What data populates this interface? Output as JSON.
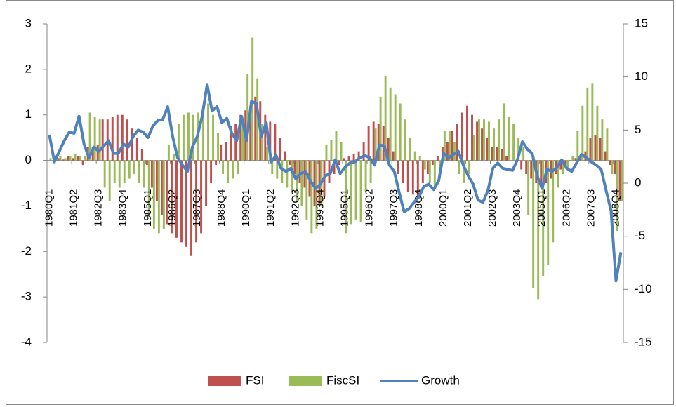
{
  "chart_data": {
    "type": "bar",
    "categories": [
      "1980Q1",
      null,
      null,
      null,
      null,
      "1981Q2",
      null,
      null,
      null,
      null,
      "1982Q3",
      null,
      null,
      null,
      null,
      "1983Q4",
      null,
      null,
      null,
      null,
      "1985Q1",
      null,
      null,
      null,
      null,
      "1986Q2",
      null,
      null,
      null,
      null,
      "1987Q3",
      null,
      null,
      null,
      null,
      "1988Q4",
      null,
      null,
      null,
      null,
      "1990Q1",
      null,
      null,
      null,
      null,
      "1991Q2",
      null,
      null,
      null,
      null,
      "1992Q3",
      null,
      null,
      null,
      null,
      "1993Q4",
      null,
      null,
      null,
      null,
      "1995Q1",
      null,
      null,
      null,
      null,
      "1996Q2",
      null,
      null,
      null,
      null,
      "1997Q3",
      null,
      null,
      null,
      null,
      "1998Q4",
      null,
      null,
      null,
      null,
      "2000Q1",
      null,
      null,
      null,
      null,
      "2001Q2",
      null,
      null,
      null,
      null,
      "2002Q3",
      null,
      null,
      null,
      null,
      "2003Q4",
      null,
      null,
      null,
      null,
      "2005Q1",
      null,
      null,
      null,
      null,
      "2006Q2",
      null,
      null,
      null,
      null,
      "2007Q3",
      null,
      null,
      null,
      null,
      "2008Q4",
      null
    ],
    "series": [
      {
        "name": "FSI",
        "type": "bar",
        "color": "#c0504d",
        "values": [
          0,
          0,
          0.05,
          0.02,
          0.1,
          0.05,
          0.1,
          -0.1,
          0.3,
          0.3,
          0.35,
          0.9,
          0.9,
          0.95,
          1.0,
          1.0,
          0.9,
          0.7,
          0.5,
          0.25,
          -0.1,
          -0.6,
          -0.9,
          -1.2,
          -1.4,
          -1.6,
          -1.7,
          -1.8,
          -1.9,
          -2.1,
          -1.8,
          -1.6,
          -1.0,
          -0.5,
          -0.1,
          0.35,
          0.4,
          0.75,
          0.8,
          1.0,
          1.1,
          1.2,
          1.4,
          1.3,
          1.0,
          0.85,
          0.8,
          0.5,
          0.2,
          -0.1,
          -0.3,
          -0.5,
          -0.6,
          -0.8,
          -1.0,
          -1.0,
          -0.8,
          -0.5,
          -0.3,
          -0.1,
          0.05,
          0.1,
          0.15,
          0.2,
          0.4,
          0.75,
          0.85,
          0.8,
          0.75,
          0.5,
          0.2,
          -0.3,
          -0.5,
          -0.7,
          -0.75,
          -0.8,
          -0.5,
          -0.3,
          -0.1,
          0.1,
          0.3,
          0.4,
          0.65,
          0.8,
          1.05,
          1.2,
          1.0,
          0.85,
          0.7,
          0.5,
          0.3,
          0.3,
          0.25,
          0.1,
          0,
          -0.1,
          -0.2,
          -0.3,
          -0.4,
          -0.5,
          -0.6,
          -0.5,
          -0.4,
          -0.3,
          -0.2,
          -0.1,
          0,
          0.05,
          0.1,
          0.2,
          0.5,
          0.55,
          0.5,
          0.2,
          -0.1,
          -0.3,
          -0.9
        ]
      },
      {
        "name": "FiscSI",
        "type": "bar",
        "color": "#9bbb59",
        "values": [
          0.05,
          0.05,
          0.1,
          0.05,
          0.1,
          0.15,
          0.1,
          0.1,
          1.05,
          0.95,
          0.9,
          -0.6,
          -0.9,
          -0.5,
          -0.6,
          -0.5,
          -0.4,
          -0.3,
          -0.5,
          -0.6,
          -1.2,
          -1.5,
          -1.6,
          -1.5,
          0.35,
          0.15,
          0.8,
          1.0,
          1.05,
          1.0,
          1.05,
          1.2,
          1.25,
          1.0,
          0.6,
          -0.3,
          -0.5,
          -0.4,
          -0.3,
          0.8,
          1.9,
          2.7,
          1.8,
          0.8,
          0.3,
          -0.3,
          -0.4,
          -0.5,
          -0.6,
          -0.7,
          -0.9,
          -1.0,
          -1.3,
          -1.6,
          -1.5,
          -1.0,
          0.35,
          0.45,
          0.65,
          0.4,
          -1.6,
          -1.4,
          -1.3,
          -1.35,
          -0.7,
          -0.5,
          0.7,
          1.4,
          1.85,
          1.6,
          1.45,
          1.25,
          0.9,
          0.5,
          0.2,
          0.1,
          -0.2,
          -0.5,
          -0.6,
          -0.4,
          0.65,
          0.65,
          0.4,
          -0.3,
          -0.5,
          -0.3,
          0.55,
          0.9,
          0.9,
          0.85,
          0.7,
          0.9,
          1.25,
          0.95,
          0.8,
          0.5,
          0.3,
          -1.2,
          -2.8,
          -3.05,
          -2.55,
          -2.3,
          -1.8,
          -0.6,
          -0.3,
          -0.2,
          0.1,
          0.65,
          1.2,
          1.6,
          1.7,
          1.2,
          0.9,
          0.7,
          -0.3,
          -1.55,
          -0.9
        ]
      },
      {
        "name": "Growth",
        "type": "line",
        "axis": "y2",
        "color": "#4f81bd",
        "values": [
          4.5,
          2.0,
          3.0,
          4.0,
          4.8,
          4.7,
          6.3,
          3.7,
          2.4,
          3.4,
          3.0,
          3.5,
          4.0,
          2.8,
          2.8,
          3.7,
          3.4,
          4.4,
          5.0,
          4.8,
          4.3,
          5.4,
          5.9,
          6.0,
          7.2,
          4.4,
          2.4,
          1.7,
          1.1,
          3.4,
          4.4,
          6.3,
          9.3,
          6.8,
          7.2,
          5.7,
          6.1,
          4.7,
          4.0,
          6.3,
          4.0,
          7.7,
          7.5,
          4.4,
          5.7,
          2.0,
          2.6,
          1.4,
          1.1,
          1.4,
          0.4,
          0.9,
          1.1,
          0.2,
          -0.5,
          -0.1,
          0.7,
          0.9,
          2.2,
          0.9,
          1.5,
          1.9,
          2.0,
          2.4,
          2.6,
          2.4,
          1.7,
          3.6,
          3.5,
          1.7,
          1.1,
          -0.9,
          -2.7,
          -2.4,
          -1.8,
          -1.3,
          -0.3,
          -0.1,
          -0.6,
          0.2,
          2.8,
          2.4,
          2.7,
          3.0,
          1.7,
          0.7,
          -0.1,
          -1.6,
          -1.8,
          -0.7,
          1.4,
          1.9,
          1.4,
          1.3,
          1.2,
          2.2,
          3.9,
          3.2,
          2.8,
          0.7,
          -0.5,
          1.3,
          1.1,
          1.5,
          2.2,
          1.4,
          1.1,
          1.9,
          2.7,
          2.4,
          2.0,
          1.7,
          1.3,
          -0.7,
          -2.6,
          -9.2,
          -6.5
        ]
      }
    ],
    "ylim": [
      -4,
      3
    ],
    "yticks": [
      -4,
      -3,
      -2,
      -1,
      0,
      1,
      2,
      3
    ],
    "y2lim": [
      -15,
      15
    ],
    "y2ticks": [
      -15,
      -10,
      -5,
      0,
      5,
      10,
      15
    ],
    "grid": false,
    "legend": "bottom"
  }
}
